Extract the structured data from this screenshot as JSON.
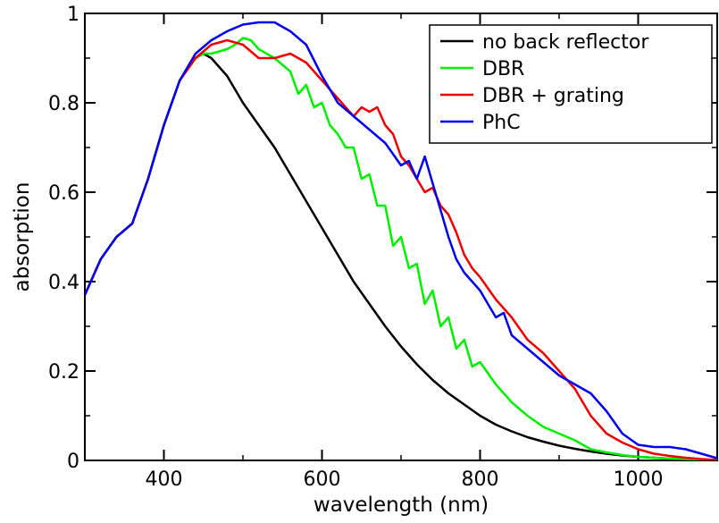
{
  "chart_data": {
    "type": "line",
    "title": "",
    "xlabel": "wavelength (nm)",
    "ylabel": "absorption",
    "xlim": [
      300,
      1100
    ],
    "ylim": [
      0,
      1
    ],
    "xticks": [
      400,
      600,
      800,
      1000
    ],
    "xtick_labels": [
      "400",
      "600",
      "800",
      "1000"
    ],
    "yticks": [
      0,
      0.2,
      0.4,
      0.6,
      0.8,
      1
    ],
    "ytick_labels": [
      "0",
      "0.2",
      "0.4",
      "0.6",
      "0.8",
      "1"
    ],
    "grid": false,
    "legend_position": "top-right",
    "series": [
      {
        "name": "no back reflector",
        "color": "#000000",
        "x": [
          300,
          320,
          340,
          350,
          360,
          380,
          400,
          420,
          440,
          450,
          460,
          480,
          500,
          520,
          540,
          560,
          580,
          600,
          620,
          640,
          660,
          680,
          700,
          720,
          740,
          760,
          780,
          800,
          820,
          840,
          860,
          880,
          900,
          920,
          940,
          960,
          980,
          1000,
          1020,
          1040,
          1060,
          1080,
          1100
        ],
        "y": [
          0.37,
          0.45,
          0.5,
          0.515,
          0.53,
          0.63,
          0.75,
          0.85,
          0.9,
          0.91,
          0.9,
          0.86,
          0.8,
          0.75,
          0.7,
          0.64,
          0.58,
          0.52,
          0.46,
          0.4,
          0.35,
          0.3,
          0.255,
          0.215,
          0.18,
          0.15,
          0.125,
          0.1,
          0.08,
          0.065,
          0.052,
          0.042,
          0.033,
          0.026,
          0.02,
          0.015,
          0.011,
          0.008,
          0.006,
          0.004,
          0.003,
          0.002,
          0.001
        ]
      },
      {
        "name": "DBR",
        "color": "#00ee00",
        "x": [
          300,
          320,
          340,
          350,
          360,
          380,
          400,
          420,
          440,
          450,
          460,
          480,
          490,
          500,
          510,
          520,
          540,
          560,
          570,
          580,
          590,
          600,
          610,
          620,
          630,
          640,
          650,
          660,
          670,
          680,
          690,
          700,
          710,
          720,
          730,
          740,
          750,
          760,
          770,
          780,
          790,
          800,
          820,
          840,
          860,
          880,
          900,
          920,
          940,
          960,
          980,
          1000,
          1020,
          1040,
          1060,
          1080,
          1100
        ],
        "y": [
          0.37,
          0.45,
          0.5,
          0.515,
          0.53,
          0.63,
          0.75,
          0.85,
          0.9,
          0.91,
          0.91,
          0.92,
          0.93,
          0.945,
          0.94,
          0.92,
          0.9,
          0.87,
          0.82,
          0.84,
          0.79,
          0.8,
          0.75,
          0.73,
          0.7,
          0.7,
          0.63,
          0.64,
          0.57,
          0.57,
          0.48,
          0.5,
          0.43,
          0.44,
          0.35,
          0.38,
          0.3,
          0.32,
          0.25,
          0.27,
          0.21,
          0.22,
          0.17,
          0.13,
          0.1,
          0.075,
          0.06,
          0.045,
          0.025,
          0.018,
          0.012,
          0.008,
          0.006,
          0.004,
          0.003,
          0.002,
          0.001
        ]
      },
      {
        "name": "DBR + grating",
        "color": "#ee0000",
        "x": [
          300,
          320,
          340,
          350,
          360,
          380,
          400,
          420,
          440,
          460,
          480,
          500,
          520,
          540,
          560,
          580,
          600,
          620,
          640,
          650,
          660,
          670,
          680,
          690,
          700,
          710,
          720,
          730,
          740,
          750,
          760,
          770,
          780,
          790,
          800,
          820,
          840,
          860,
          880,
          900,
          920,
          940,
          960,
          980,
          1000,
          1020,
          1040,
          1060,
          1080,
          1100
        ],
        "y": [
          0.37,
          0.45,
          0.5,
          0.515,
          0.53,
          0.63,
          0.75,
          0.85,
          0.9,
          0.93,
          0.94,
          0.93,
          0.9,
          0.9,
          0.91,
          0.89,
          0.85,
          0.81,
          0.77,
          0.79,
          0.78,
          0.79,
          0.75,
          0.73,
          0.68,
          0.66,
          0.63,
          0.6,
          0.61,
          0.57,
          0.55,
          0.51,
          0.46,
          0.43,
          0.41,
          0.36,
          0.32,
          0.27,
          0.24,
          0.2,
          0.16,
          0.1,
          0.06,
          0.04,
          0.025,
          0.015,
          0.01,
          0.006,
          0.003,
          0.001
        ]
      },
      {
        "name": "PhC",
        "color": "#0000ee",
        "x": [
          300,
          320,
          340,
          350,
          360,
          380,
          400,
          420,
          440,
          460,
          480,
          500,
          520,
          540,
          560,
          580,
          600,
          620,
          640,
          660,
          680,
          700,
          710,
          720,
          730,
          740,
          750,
          760,
          770,
          780,
          790,
          800,
          810,
          820,
          830,
          840,
          860,
          880,
          900,
          920,
          940,
          960,
          980,
          1000,
          1020,
          1040,
          1060,
          1080,
          1100
        ],
        "y": [
          0.37,
          0.45,
          0.5,
          0.515,
          0.53,
          0.63,
          0.75,
          0.85,
          0.91,
          0.94,
          0.96,
          0.975,
          0.98,
          0.98,
          0.96,
          0.93,
          0.86,
          0.8,
          0.77,
          0.74,
          0.71,
          0.66,
          0.67,
          0.63,
          0.68,
          0.62,
          0.56,
          0.5,
          0.45,
          0.42,
          0.4,
          0.38,
          0.35,
          0.32,
          0.33,
          0.28,
          0.25,
          0.22,
          0.19,
          0.17,
          0.15,
          0.11,
          0.06,
          0.035,
          0.03,
          0.03,
          0.025,
          0.015,
          0.005
        ]
      }
    ]
  }
}
